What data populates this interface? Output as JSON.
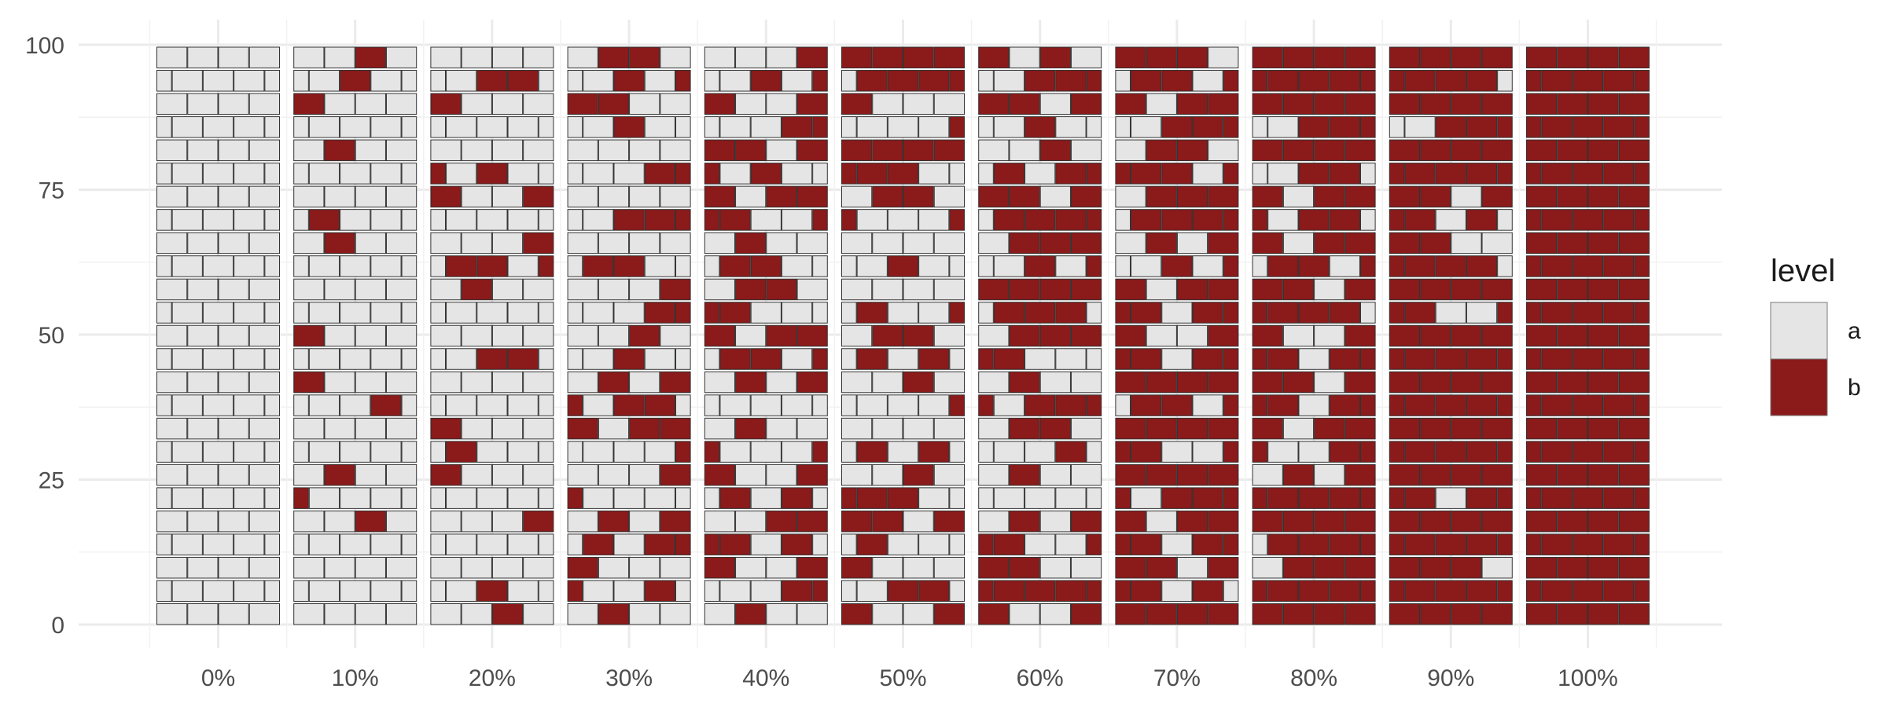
{
  "chart_data": {
    "type": "brick",
    "description_free": true,
    "categories": [
      "0%",
      "10%",
      "20%",
      "30%",
      "40%",
      "50%",
      "60%",
      "70%",
      "80%",
      "90%",
      "100%"
    ],
    "proportion_b": [
      0,
      0.1,
      0.2,
      0.3,
      0.4,
      0.5,
      0.6,
      0.7,
      0.8,
      0.9,
      1.0
    ],
    "rows_per_column": 25,
    "bricks_per_row": 4,
    "y_ticks": [
      0,
      25,
      50,
      75,
      100
    ],
    "ylim": [
      0,
      100
    ],
    "legend": {
      "title": "level",
      "placement": "right",
      "entries": [
        {
          "label": "a",
          "color": "#e5e5e5"
        },
        {
          "label": "b",
          "color": "#8b1a1a"
        }
      ]
    },
    "grid": true
  }
}
